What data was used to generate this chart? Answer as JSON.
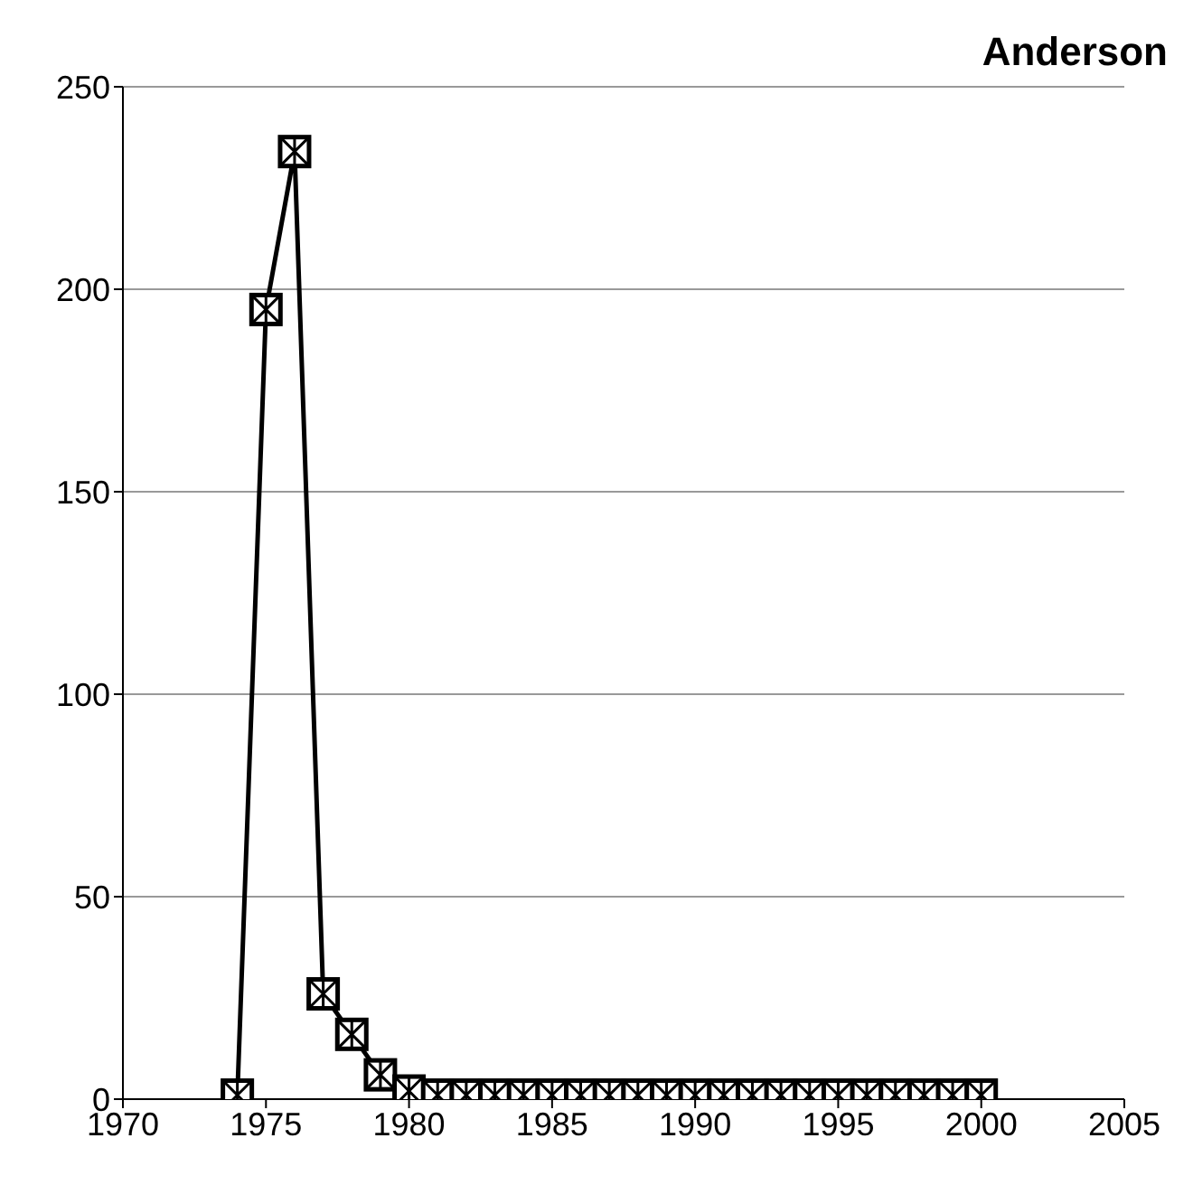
{
  "chart_data": {
    "type": "line",
    "title": "Anderson",
    "x": [
      1974,
      1975,
      1976,
      1977,
      1978,
      1979,
      1980,
      1981,
      1982,
      1983,
      1984,
      1985,
      1986,
      1987,
      1988,
      1989,
      1990,
      1991,
      1992,
      1993,
      1994,
      1995,
      1996,
      1997,
      1998,
      1999,
      2000
    ],
    "series": [
      {
        "color": "#000000",
        "values": [
          1,
          195,
          234,
          26,
          16,
          6,
          2,
          1,
          1,
          1,
          1,
          1,
          1,
          1,
          1,
          1,
          1,
          1,
          1,
          1,
          1,
          1,
          1,
          1,
          1,
          1,
          1
        ]
      }
    ],
    "xlim": [
      1970,
      2005
    ],
    "xticks": [
      1970,
      1975,
      1980,
      1985,
      1990,
      1995,
      2000,
      2005
    ],
    "ylim": [
      0,
      250
    ],
    "yticks": [
      0,
      50,
      100,
      150,
      200,
      250
    ],
    "grid": "y",
    "marker": "square",
    "line_style": "solid"
  }
}
